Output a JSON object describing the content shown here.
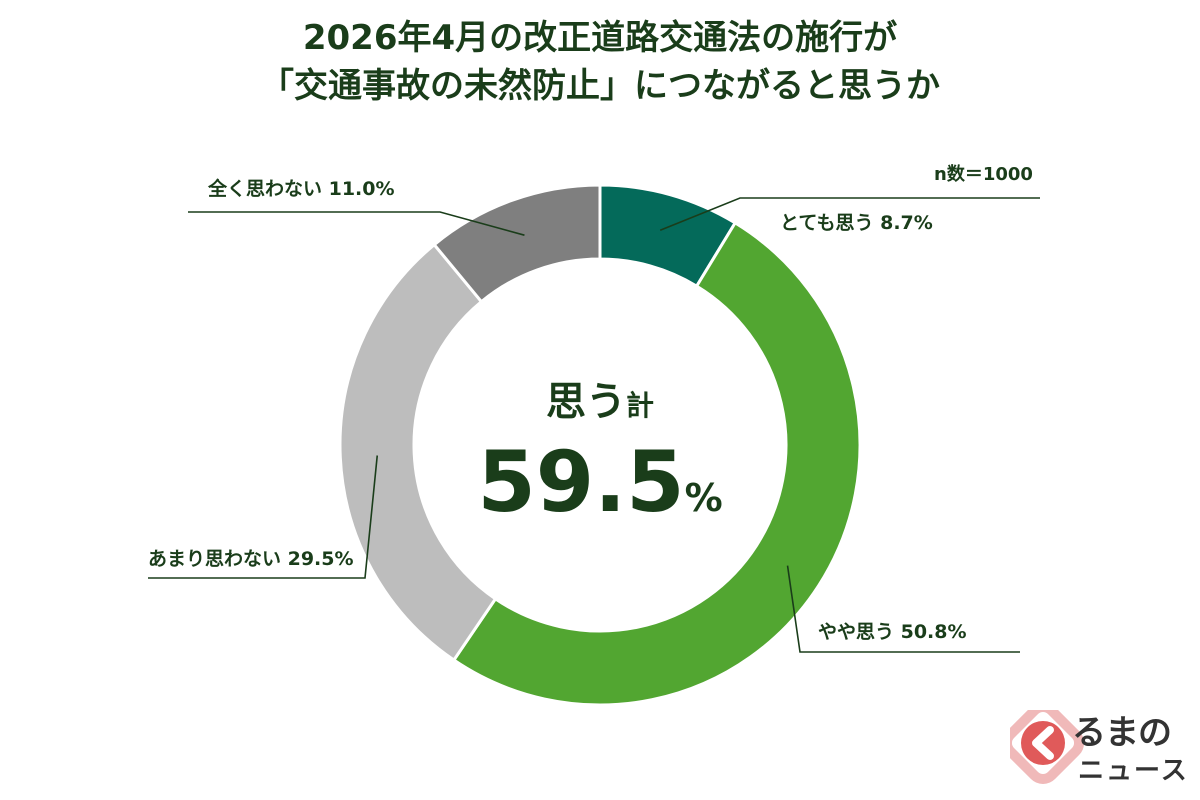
{
  "chart_data": {
    "type": "pie",
    "title_lines": [
      "2026年4月の改正道路交通法の施行が",
      "「交通事故の未然防止」につながると思うか"
    ],
    "sample_size": "n数＝1000",
    "center_caption_main": "思う",
    "center_caption_suffix": "計",
    "center_total_value": "59.5",
    "center_total_unit": "%",
    "slices": [
      {
        "label": "とても思う 8.7%",
        "value": 8.7,
        "color": "#046a5a"
      },
      {
        "label": "やや思う 50.8%",
        "value": 50.8,
        "color": "#52a631"
      },
      {
        "label": "あまり思わない 29.5%",
        "value": 29.5,
        "color": "#bdbdbd"
      },
      {
        "label": "全く思わない 11.0%",
        "value": 11.0,
        "color": "#7f7f7f"
      }
    ],
    "hole": true
  },
  "logo": {
    "text_top": "るまの",
    "text_bottom": "ニュース",
    "color": "#e05a5a"
  }
}
